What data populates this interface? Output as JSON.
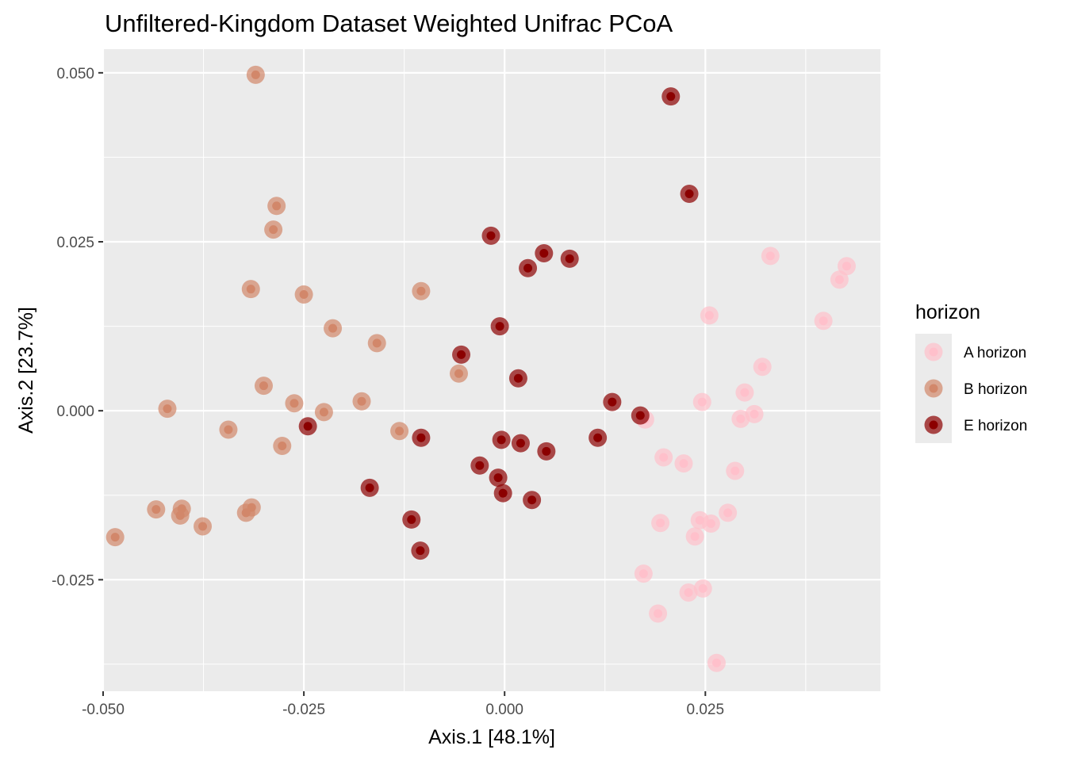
{
  "chart_data": {
    "type": "scatter",
    "title": "Unfiltered-Kingdom Dataset Weighted Unifrac PCoA",
    "xlabel": "Axis.1   [48.1%]",
    "ylabel": "Axis.2   [23.7%]",
    "xlim": [
      -0.05,
      0.0468
    ],
    "ylim": [
      -0.0415,
      0.0535
    ],
    "x_ticks": [
      {
        "value": -0.05,
        "label": "-0.050"
      },
      {
        "value": -0.025,
        "label": "-0.025"
      },
      {
        "value": 0.0,
        "label": "0.000"
      },
      {
        "value": 0.025,
        "label": "0.025"
      }
    ],
    "y_ticks": [
      {
        "value": 0.05,
        "label": "0.050"
      },
      {
        "value": 0.025,
        "label": "0.025"
      },
      {
        "value": 0.0,
        "label": "0.000"
      },
      {
        "value": -0.025,
        "label": "-0.025"
      }
    ],
    "grid": true,
    "background": "#ebebeb",
    "legend_title": "horizon",
    "legend_position": "right",
    "series": [
      {
        "name": "A horizon",
        "color": "#ffc0cb",
        "points": [
          [
            0.0331,
            0.0229
          ],
          [
            0.0426,
            0.0214
          ],
          [
            0.0417,
            0.0194
          ],
          [
            0.0397,
            0.0133
          ],
          [
            0.0255,
            0.0141
          ],
          [
            0.0321,
            0.0065
          ],
          [
            0.0299,
            0.0027
          ],
          [
            0.0246,
            0.0013
          ],
          [
            0.0311,
            -0.0005
          ],
          [
            0.0294,
            -0.0012
          ],
          [
            0.0175,
            -0.0013
          ],
          [
            0.0198,
            -0.0069
          ],
          [
            0.0223,
            -0.0078
          ],
          [
            0.0287,
            -0.0089
          ],
          [
            0.0278,
            -0.0151
          ],
          [
            0.0194,
            -0.0166
          ],
          [
            0.0243,
            -0.0162
          ],
          [
            0.0257,
            -0.0167
          ],
          [
            0.0237,
            -0.0186
          ],
          [
            0.0173,
            -0.0241
          ],
          [
            0.0229,
            -0.0269
          ],
          [
            0.0247,
            -0.0263
          ],
          [
            0.0191,
            -0.03
          ],
          [
            0.0264,
            -0.0373
          ]
        ]
      },
      {
        "name": "B horizon",
        "color": "#d2876a",
        "points": [
          [
            -0.031,
            0.0497
          ],
          [
            -0.0284,
            0.0303
          ],
          [
            -0.0288,
            0.0268
          ],
          [
            -0.0316,
            0.018
          ],
          [
            -0.025,
            0.0172
          ],
          [
            -0.0104,
            0.0177
          ],
          [
            -0.0214,
            0.0122
          ],
          [
            -0.0159,
            0.01
          ],
          [
            -0.0057,
            0.0055
          ],
          [
            -0.03,
            0.0037
          ],
          [
            -0.0262,
            0.0011
          ],
          [
            -0.0178,
            0.0014
          ],
          [
            -0.0225,
            -0.0002
          ],
          [
            -0.042,
            0.0003
          ],
          [
            -0.0344,
            -0.0028
          ],
          [
            -0.0131,
            -0.003
          ],
          [
            -0.0277,
            -0.0052
          ],
          [
            -0.0434,
            -0.0146
          ],
          [
            -0.0402,
            -0.0145
          ],
          [
            -0.0404,
            -0.0155
          ],
          [
            -0.0315,
            -0.0143
          ],
          [
            -0.0322,
            -0.0151
          ],
          [
            -0.0376,
            -0.0171
          ],
          [
            -0.0485,
            -0.0187
          ]
        ]
      },
      {
        "name": "E horizon",
        "color": "#8b0000",
        "points": [
          [
            0.0207,
            0.0465
          ],
          [
            0.023,
            0.0321
          ],
          [
            -0.0017,
            0.0259
          ],
          [
            0.0049,
            0.0233
          ],
          [
            0.0029,
            0.0211
          ],
          [
            0.0081,
            0.0225
          ],
          [
            -0.0006,
            0.0125
          ],
          [
            -0.0054,
            0.0083
          ],
          [
            0.0017,
            0.0048
          ],
          [
            0.0134,
            0.0013
          ],
          [
            0.0169,
            -0.0007
          ],
          [
            -0.0245,
            -0.0023
          ],
          [
            -0.0104,
            -0.004
          ],
          [
            -0.0004,
            -0.0043
          ],
          [
            0.002,
            -0.0048
          ],
          [
            0.0116,
            -0.004
          ],
          [
            0.0052,
            -0.006
          ],
          [
            -0.0031,
            -0.0081
          ],
          [
            -0.0008,
            -0.0099
          ],
          [
            -0.0002,
            -0.0122
          ],
          [
            -0.0168,
            -0.0114
          ],
          [
            0.0034,
            -0.0132
          ],
          [
            -0.0116,
            -0.0161
          ],
          [
            -0.0105,
            -0.0207
          ]
        ]
      }
    ]
  }
}
